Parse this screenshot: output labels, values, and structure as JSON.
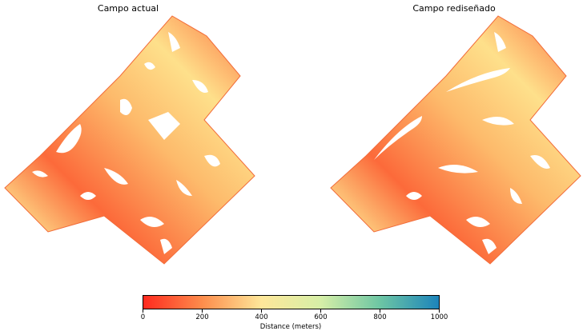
{
  "panels": {
    "left_title": "Campo actual",
    "right_title": "Campo rediseñado"
  },
  "colorbar": {
    "label": "Distance (meters)",
    "ticks": [
      "0",
      "200",
      "400",
      "600",
      "800",
      "1000"
    ],
    "range": [
      0,
      1000
    ],
    "colors": [
      "#ff2a1f",
      "#fd8d4c",
      "#fee79a",
      "#d6efa7",
      "#6dc6a4",
      "#1c84bb"
    ]
  }
}
